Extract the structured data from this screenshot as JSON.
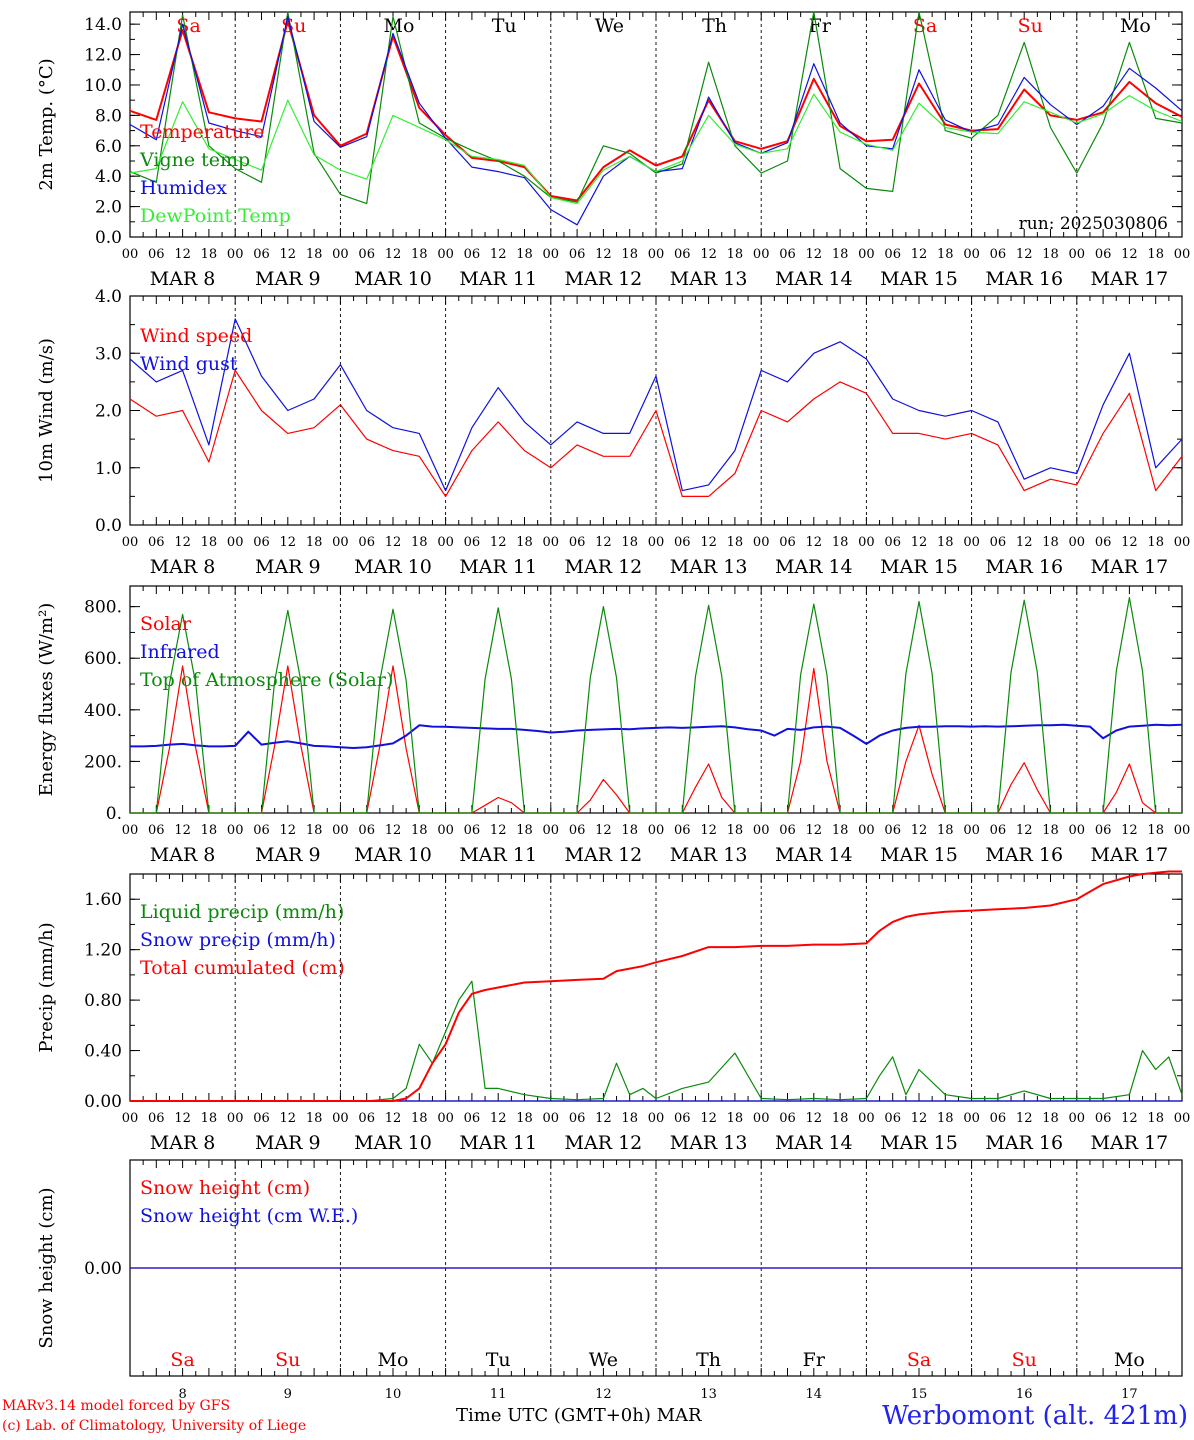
{
  "footer": {
    "credit_line1": "MARv3.14 model forced by GFS",
    "credit_line2": "(c) Lab. of Climatology, University of Liege",
    "time_axis_label": "Time UTC (GMT+0h) MAR",
    "station": "Werbomont (alt. 421m)"
  },
  "colors": {
    "red": "#ff0000",
    "green": "#0a8a0a",
    "blue": "#1010e0",
    "light_green": "#33ee33",
    "weekend_label": "#ff0000",
    "weekday_label": "#000000"
  },
  "days": {
    "names": [
      "Sa",
      "Su",
      "Mo",
      "Tu",
      "We",
      "Th",
      "Fr",
      "Sa",
      "Su",
      "Mo"
    ],
    "weekend": [
      true,
      true,
      false,
      false,
      false,
      false,
      false,
      true,
      true,
      false
    ],
    "dates": [
      "MAR  8",
      "MAR  9",
      "MAR 10",
      "MAR 11",
      "MAR 12",
      "MAR 13",
      "MAR 14",
      "MAR 15",
      "MAR 16",
      "MAR 17"
    ],
    "numbers": [
      "8",
      "9",
      "10",
      "11",
      "12",
      "13",
      "14",
      "15",
      "16",
      "17"
    ],
    "hour_labels": [
      "00",
      "06",
      "12",
      "18"
    ],
    "final_hour_label": "00"
  },
  "chart_data": [
    {
      "type": "line",
      "ylabel": "2m Temp. (°C)",
      "ylim": [
        0,
        14.8
      ],
      "yticks": [
        "0.0",
        "2.0",
        "4.0",
        "6.0",
        "8.0",
        "10.0",
        "12.0",
        "14.0"
      ],
      "ytick_values": [
        0,
        2,
        4,
        6,
        8,
        10,
        12,
        14
      ],
      "annotation": "run: 2025030806",
      "x_hours": [
        0,
        6,
        12,
        18,
        24,
        30,
        36,
        42,
        48,
        54,
        60,
        66,
        72,
        78,
        84,
        90,
        96,
        102,
        108,
        114,
        120,
        126,
        132,
        138,
        144,
        150,
        156,
        162,
        168,
        174,
        180,
        186,
        192,
        198,
        204,
        210,
        216,
        222,
        228,
        234,
        240
      ],
      "series": [
        {
          "name": "Temperature",
          "color": "#ff0000",
          "values": [
            8.3,
            7.7,
            13.6,
            8.2,
            7.8,
            7.6,
            14.2,
            8.0,
            6.0,
            6.8,
            13.2,
            8.5,
            6.7,
            5.2,
            5.0,
            4.6,
            2.7,
            2.4,
            4.6,
            5.7,
            4.7,
            5.3,
            9.0,
            6.3,
            5.8,
            6.3,
            10.4,
            7.3,
            6.3,
            6.4,
            10.1,
            7.4,
            7.0,
            7.1,
            9.7,
            8.0,
            7.7,
            8.2,
            10.2,
            8.8,
            7.9
          ]
        },
        {
          "name": "Vigne temp",
          "color": "#0a8a0a",
          "values": [
            4.3,
            3.6,
            14.6,
            6.0,
            4.5,
            3.6,
            14.8,
            5.5,
            2.8,
            2.2,
            14.5,
            7.5,
            6.5,
            5.7,
            5.0,
            4.0,
            2.6,
            2.3,
            6.0,
            5.5,
            4.2,
            4.8,
            11.5,
            6.0,
            4.2,
            5.0,
            14.8,
            4.5,
            3.2,
            3.0,
            14.8,
            7.0,
            6.5,
            8.0,
            12.8,
            7.2,
            4.2,
            7.5,
            12.8,
            7.8,
            7.5
          ]
        },
        {
          "name": "Humidex",
          "color": "#1010e0",
          "values": [
            7.4,
            6.4,
            14.0,
            7.5,
            7.0,
            6.6,
            14.5,
            7.6,
            5.9,
            6.6,
            13.4,
            8.8,
            6.5,
            4.6,
            4.3,
            3.9,
            1.8,
            0.8,
            4.0,
            5.3,
            4.3,
            4.5,
            9.2,
            6.2,
            5.5,
            6.2,
            11.4,
            7.5,
            6.0,
            5.8,
            11.0,
            7.7,
            6.9,
            7.4,
            10.5,
            8.7,
            7.4,
            8.6,
            11.1,
            9.8,
            8.3
          ]
        },
        {
          "name": "DewPoint Temp",
          "color": "#33ee33",
          "values": [
            4.2,
            4.5,
            8.9,
            5.8,
            5.1,
            4.4,
            9.0,
            5.4,
            4.4,
            3.8,
            8.0,
            7.2,
            6.4,
            5.3,
            5.1,
            4.7,
            2.6,
            2.2,
            4.4,
            5.3,
            4.3,
            5.0,
            8.0,
            6.1,
            5.5,
            5.8,
            9.4,
            6.9,
            6.1,
            5.7,
            8.8,
            7.2,
            6.9,
            6.8,
            8.9,
            8.2,
            7.5,
            8.1,
            9.3,
            8.3,
            7.6
          ]
        }
      ]
    },
    {
      "type": "line",
      "ylabel": "10m Wind (m/s)",
      "ylim": [
        0,
        4.0
      ],
      "yticks": [
        "0.0",
        "1.0",
        "2.0",
        "3.0",
        "4.0"
      ],
      "ytick_values": [
        0,
        1,
        2,
        3,
        4
      ],
      "x_hours": [
        0,
        6,
        12,
        18,
        24,
        30,
        36,
        42,
        48,
        54,
        60,
        66,
        72,
        78,
        84,
        90,
        96,
        102,
        108,
        114,
        120,
        126,
        132,
        138,
        144,
        150,
        156,
        162,
        168,
        174,
        180,
        186,
        192,
        198,
        204,
        210,
        216,
        222,
        228,
        234,
        240
      ],
      "series": [
        {
          "name": "Wind speed",
          "color": "#ff0000",
          "values": [
            2.2,
            1.9,
            2.0,
            1.1,
            2.7,
            2.0,
            1.6,
            1.7,
            2.1,
            1.5,
            1.3,
            1.2,
            0.5,
            1.3,
            1.8,
            1.3,
            1.0,
            1.4,
            1.2,
            1.2,
            2.0,
            0.5,
            0.5,
            0.9,
            2.0,
            1.8,
            2.2,
            2.5,
            2.3,
            1.6,
            1.6,
            1.5,
            1.6,
            1.4,
            0.6,
            0.8,
            0.7,
            1.6,
            2.3,
            0.6,
            1.2
          ]
        },
        {
          "name": "Wind gust",
          "color": "#1010e0",
          "values": [
            2.9,
            2.5,
            2.7,
            1.4,
            3.6,
            2.6,
            2.0,
            2.2,
            2.8,
            2.0,
            1.7,
            1.6,
            0.6,
            1.7,
            2.4,
            1.8,
            1.4,
            1.8,
            1.6,
            1.6,
            2.6,
            0.6,
            0.7,
            1.3,
            2.7,
            2.5,
            3.0,
            3.2,
            2.9,
            2.2,
            2.0,
            1.9,
            2.0,
            1.8,
            0.8,
            1.0,
            0.9,
            2.1,
            3.0,
            1.0,
            1.5
          ]
        }
      ]
    },
    {
      "type": "line",
      "ylabel": "Energy fluxes (W/m²)",
      "ylim": [
        0,
        880
      ],
      "yticks": [
        "0.",
        "200.",
        "400.",
        "600.",
        "800."
      ],
      "ytick_values": [
        0,
        200,
        400,
        600,
        800
      ],
      "x_hours": [
        0,
        3,
        6,
        9,
        12,
        15,
        18,
        21,
        24,
        27,
        30,
        33,
        36,
        39,
        42,
        45,
        48,
        51,
        54,
        57,
        60,
        63,
        66,
        69,
        72,
        75,
        78,
        81,
        84,
        87,
        90,
        93,
        96,
        99,
        102,
        105,
        108,
        111,
        114,
        117,
        120,
        123,
        126,
        129,
        132,
        135,
        138,
        141,
        144,
        147,
        150,
        153,
        156,
        159,
        162,
        165,
        168,
        171,
        174,
        177,
        180,
        183,
        186,
        189,
        192,
        195,
        198,
        201,
        204,
        207,
        210,
        213,
        216,
        219,
        222,
        225,
        228,
        231,
        234,
        237,
        240
      ],
      "series": [
        {
          "name": "Solar",
          "color": "#ff0000",
          "values": [
            0,
            0,
            0,
            250,
            570,
            250,
            0,
            0,
            0,
            0,
            0,
            260,
            570,
            260,
            0,
            0,
            0,
            0,
            0,
            260,
            570,
            250,
            0,
            0,
            0,
            0,
            0,
            30,
            60,
            40,
            0,
            0,
            0,
            0,
            0,
            50,
            130,
            70,
            0,
            0,
            0,
            0,
            0,
            100,
            190,
            60,
            0,
            0,
            0,
            0,
            0,
            200,
            560,
            200,
            0,
            0,
            0,
            0,
            0,
            200,
            340,
            150,
            0,
            0,
            0,
            0,
            0,
            110,
            195,
            90,
            0,
            0,
            0,
            0,
            0,
            80,
            190,
            40,
            0,
            0,
            0
          ]
        },
        {
          "name": "Infrared",
          "color": "#1010e0",
          "values": [
            258,
            258,
            260,
            265,
            268,
            262,
            258,
            258,
            260,
            315,
            265,
            272,
            278,
            270,
            260,
            258,
            255,
            252,
            255,
            262,
            270,
            300,
            340,
            335,
            334,
            332,
            330,
            328,
            326,
            326,
            322,
            318,
            312,
            315,
            320,
            322,
            324,
            326,
            325,
            328,
            330,
            332,
            330,
            332,
            334,
            336,
            332,
            325,
            320,
            300,
            326,
            322,
            332,
            335,
            330,
            300,
            268,
            300,
            320,
            330,
            334,
            334,
            336,
            336,
            335,
            336,
            335,
            336,
            338,
            340,
            340,
            342,
            338,
            335,
            290,
            320,
            335,
            338,
            342,
            340,
            342
          ]
        },
        {
          "name": "Top of Atmosphere (Solar)",
          "color": "#0a8a0a",
          "values": [
            0,
            0,
            0,
            500,
            770,
            500,
            0,
            0,
            0,
            0,
            0,
            510,
            785,
            510,
            0,
            0,
            0,
            0,
            0,
            515,
            790,
            515,
            0,
            0,
            0,
            0,
            0,
            520,
            795,
            520,
            0,
            0,
            0,
            0,
            0,
            525,
            800,
            525,
            0,
            0,
            0,
            0,
            0,
            530,
            805,
            530,
            0,
            0,
            0,
            0,
            0,
            535,
            810,
            535,
            0,
            0,
            0,
            0,
            0,
            540,
            820,
            540,
            0,
            0,
            0,
            0,
            0,
            545,
            825,
            545,
            0,
            0,
            0,
            0,
            0,
            550,
            835,
            550,
            0,
            0,
            0
          ]
        }
      ]
    },
    {
      "type": "line",
      "ylabel": "Precip (mm/h)",
      "ylim": [
        0,
        1.8
      ],
      "yticks": [
        "0.00",
        "0.40",
        "0.80",
        "1.20",
        "1.60"
      ],
      "ytick_values": [
        0,
        0.4,
        0.8,
        1.2,
        1.6
      ],
      "x_hours": [
        0,
        6,
        12,
        18,
        24,
        30,
        36,
        42,
        48,
        54,
        60,
        63,
        66,
        69,
        72,
        75,
        78,
        81,
        84,
        90,
        96,
        102,
        108,
        111,
        114,
        117,
        120,
        126,
        132,
        138,
        144,
        150,
        156,
        162,
        168,
        171,
        174,
        177,
        180,
        186,
        192,
        198,
        204,
        210,
        216,
        222,
        228,
        231,
        234,
        237,
        240
      ],
      "series": [
        {
          "name": "Liquid precip (mm/h)",
          "color": "#0a8a0a",
          "values": [
            0,
            0,
            0,
            0,
            0,
            0,
            0,
            0,
            0,
            0,
            0.02,
            0.1,
            0.45,
            0.3,
            0.55,
            0.8,
            0.95,
            0.1,
            0.1,
            0.05,
            0.02,
            0.01,
            0.02,
            0.3,
            0.05,
            0.1,
            0.02,
            0.1,
            0.15,
            0.38,
            0.02,
            0.01,
            0.02,
            0.01,
            0.02,
            0.2,
            0.35,
            0.05,
            0.25,
            0.05,
            0.02,
            0.02,
            0.08,
            0.02,
            0.02,
            0.02,
            0.05,
            0.4,
            0.25,
            0.35,
            0.05
          ]
        },
        {
          "name": "Snow precip (mm/h)",
          "color": "#1010e0",
          "values": [
            0,
            0,
            0,
            0,
            0,
            0,
            0,
            0,
            0,
            0,
            0,
            0,
            0,
            0,
            0,
            0,
            0,
            0,
            0,
            0,
            0,
            0,
            0,
            0,
            0,
            0,
            0,
            0,
            0,
            0,
            0,
            0,
            0,
            0,
            0,
            0,
            0,
            0,
            0,
            0,
            0,
            0,
            0,
            0,
            0,
            0,
            0,
            0,
            0,
            0,
            0
          ]
        },
        {
          "name": "Total cumulated (cm)",
          "color": "#ff0000",
          "values": [
            0,
            0,
            0,
            0,
            0,
            0,
            0,
            0,
            0,
            0,
            0.0,
            0.02,
            0.1,
            0.3,
            0.45,
            0.7,
            0.85,
            0.88,
            0.9,
            0.94,
            0.95,
            0.96,
            0.97,
            1.03,
            1.05,
            1.07,
            1.1,
            1.15,
            1.22,
            1.22,
            1.23,
            1.23,
            1.24,
            1.24,
            1.25,
            1.35,
            1.42,
            1.46,
            1.48,
            1.5,
            1.51,
            1.52,
            1.53,
            1.55,
            1.6,
            1.72,
            1.78,
            1.8,
            1.81,
            1.82,
            1.82
          ]
        }
      ]
    },
    {
      "type": "line",
      "ylabel": "Snow height (cm)",
      "ylim": [
        -1,
        1
      ],
      "yticks": [
        "0.00"
      ],
      "ytick_values": [
        0
      ],
      "x_hours": [
        0,
        240
      ],
      "series": [
        {
          "name": "Snow height (cm)",
          "color": "#ff0000",
          "values": [
            0,
            0
          ]
        },
        {
          "name": "Snow height (cm W.E.)",
          "color": "#1010e0",
          "values": [
            0,
            0
          ]
        }
      ]
    }
  ]
}
